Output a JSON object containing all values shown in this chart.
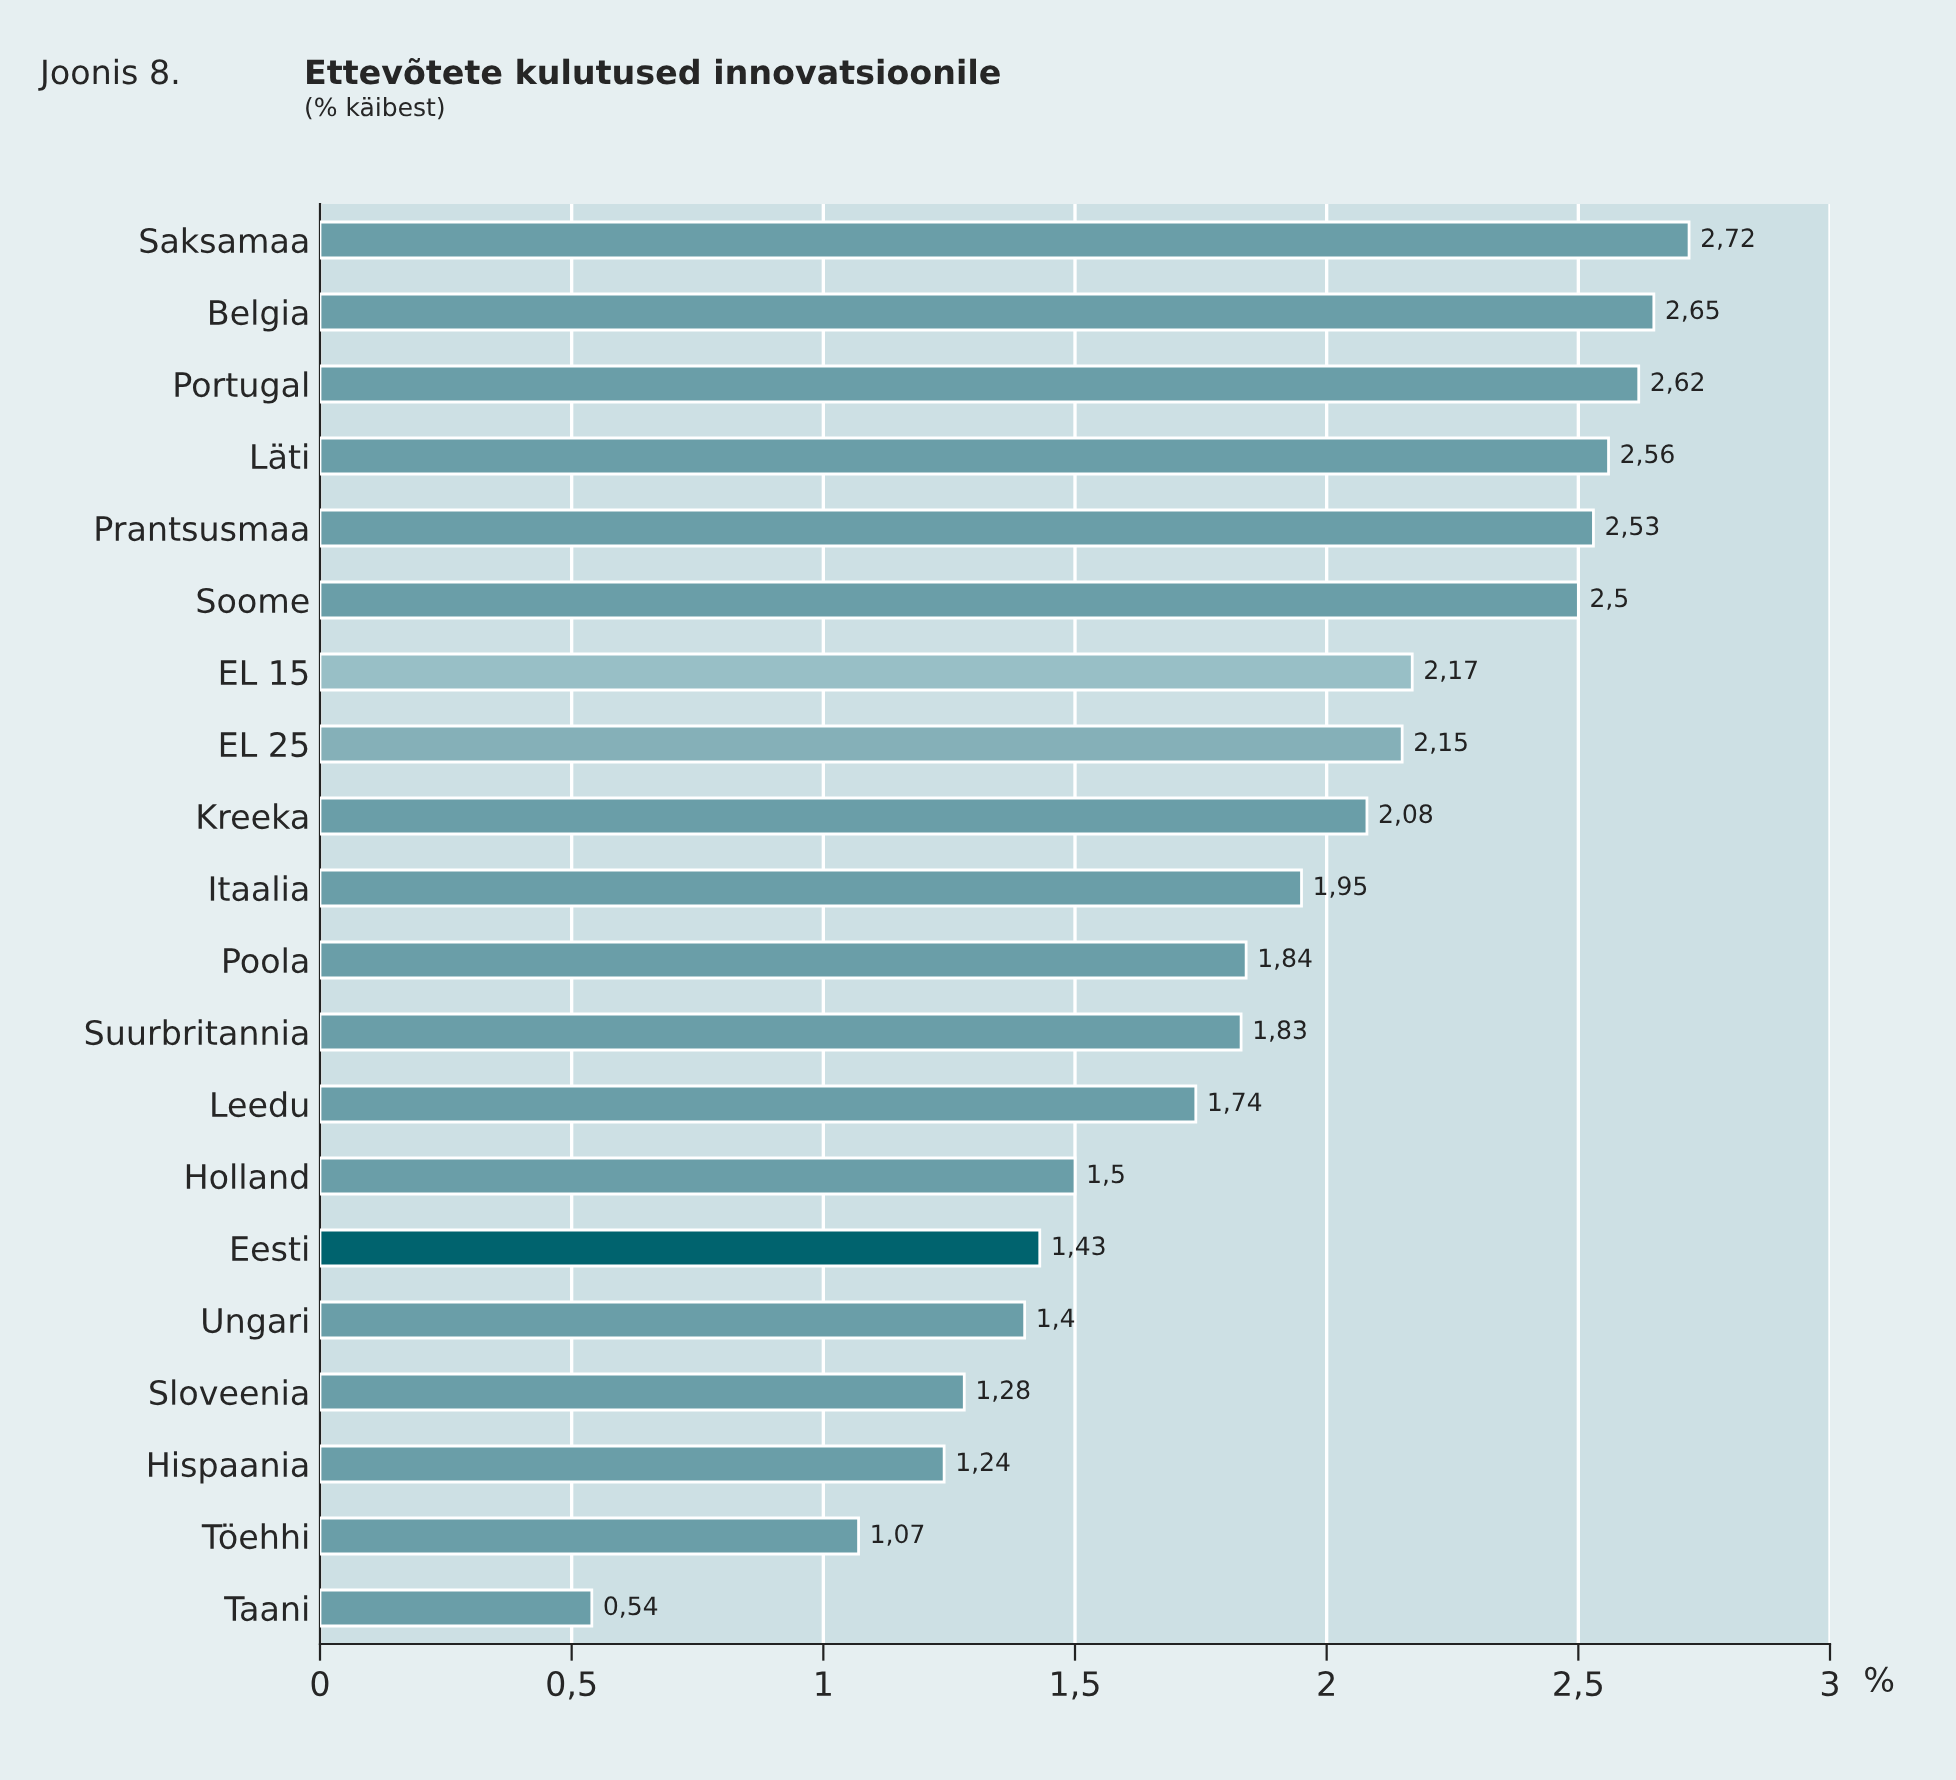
{
  "chart_data": {
    "type": "bar",
    "orientation": "horizontal",
    "title": "Ettevõtete kulutused innovatsioonile",
    "subtitle": "(% käibest)",
    "annotations": [
      "Joonis 8."
    ],
    "xlabel": "%",
    "categories": [
      "Saksamaa",
      "Belgia",
      "Portugal",
      "Läti",
      "Prantsusmaa",
      "Soome",
      "EL 15",
      "EL 25",
      "Kreeka",
      "Itaalia",
      "Poola",
      "Suurbritannia",
      "Leedu",
      "Holland",
      "Eesti",
      "Ungari",
      "Sloveenia",
      "Hispaania",
      "Töehhi",
      "Taani"
    ],
    "values": [
      2.72,
      2.65,
      2.62,
      2.56,
      2.53,
      2.5,
      2.17,
      2.15,
      2.08,
      1.95,
      1.84,
      1.83,
      1.74,
      1.5,
      1.43,
      1.4,
      1.28,
      1.24,
      1.07,
      0.54
    ],
    "value_labels": [
      "2,72",
      "2,65",
      "2,62",
      "2,56",
      "2,53",
      "2,5",
      "2,17",
      "2,15",
      "2,08",
      "1,95",
      "1,84",
      "1,83",
      "1,74",
      "1,5",
      "1,43",
      "1,4",
      "1,28",
      "1,24",
      "1,07",
      "0,54"
    ],
    "colors": [
      "#6a9ea8",
      "#6a9ea8",
      "#6a9ea8",
      "#6a9ea8",
      "#6a9ea8",
      "#6a9ea8",
      "#98bfc6",
      "#85b0b8",
      "#6a9ea8",
      "#6a9ea8",
      "#6a9ea8",
      "#6a9ea8",
      "#6a9ea8",
      "#6a9ea8",
      "#00636e",
      "#6a9ea8",
      "#6a9ea8",
      "#6a9ea8",
      "#6a9ea8",
      "#6a9ea8"
    ],
    "xlim": [
      0,
      3
    ],
    "xticks": [
      0,
      {
        "value": 0.5,
        "label": "0,5"
      },
      1,
      {
        "value": 1.5,
        "label": "1,5"
      },
      2,
      {
        "value": 2.5,
        "label": "2,5"
      },
      3
    ],
    "grid": "x",
    "legend": false
  }
}
